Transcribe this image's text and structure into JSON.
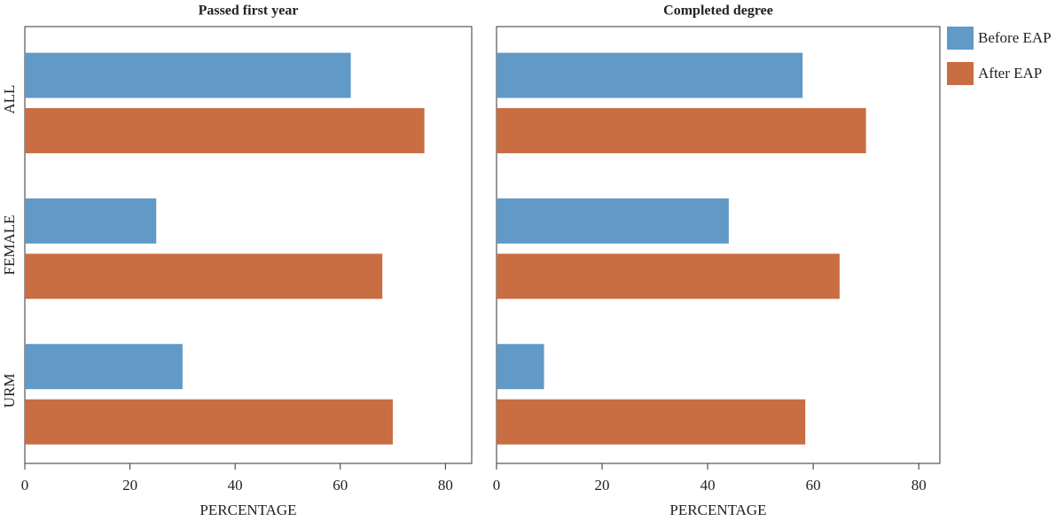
{
  "chart_data": [
    {
      "type": "barh",
      "title": "Passed first year",
      "xlabel": "PERCENTAGE",
      "categories": [
        "ALL",
        "FEMALE",
        "URM"
      ],
      "series": [
        {
          "color": "#6199c7",
          "values": [
            62,
            25,
            30
          ]
        },
        {
          "color": "#c86e42",
          "values": [
            76,
            68,
            70
          ]
        }
      ],
      "xlim": [
        0,
        85
      ],
      "xticks": [
        0,
        20,
        40,
        60,
        80
      ]
    },
    {
      "type": "barh",
      "title": "Completed degree",
      "xlabel": "PERCENTAGE",
      "categories": [
        null,
        null,
        null
      ],
      "series": [
        {
          "name": "Before EAP",
          "color": "#6199c7",
          "values": [
            58,
            44,
            9
          ]
        },
        {
          "name": "After EAP",
          "color": "#c86e42",
          "values": [
            70,
            65,
            58.5
          ]
        }
      ],
      "xlim": [
        0,
        84
      ],
      "xticks": [
        0,
        20,
        40,
        60,
        80
      ],
      "legend": "right"
    }
  ]
}
